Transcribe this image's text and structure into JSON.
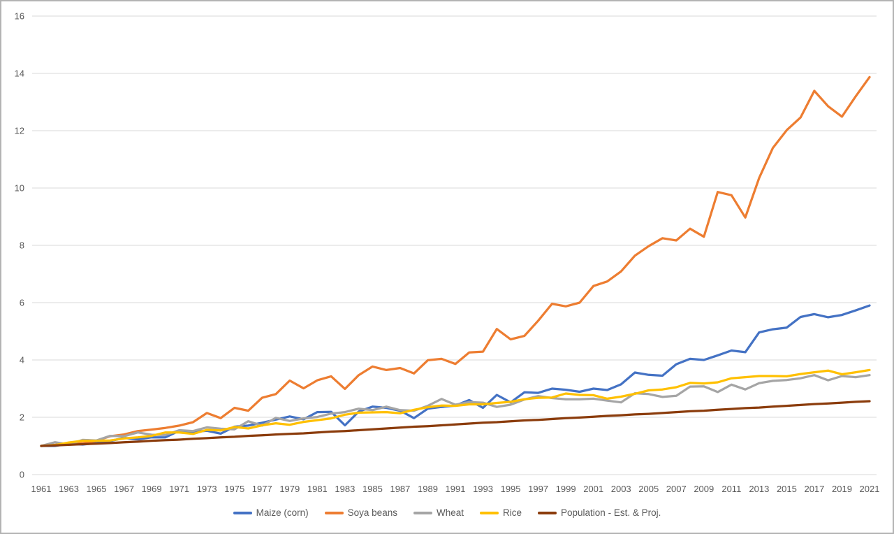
{
  "chart_data": {
    "type": "line",
    "title": "",
    "xlabel": "",
    "ylabel": "",
    "ylim": [
      0,
      16
    ],
    "y_ticks": [
      0,
      2,
      4,
      6,
      8,
      10,
      12,
      14,
      16
    ],
    "x_tick_step_years": 2,
    "grid": true,
    "legend_position": "bottom",
    "gridline_color": "#D9D9D9",
    "axis_label_color": "#595959",
    "x": [
      1961,
      1962,
      1963,
      1964,
      1965,
      1966,
      1967,
      1968,
      1969,
      1970,
      1971,
      1972,
      1973,
      1974,
      1975,
      1976,
      1977,
      1978,
      1979,
      1980,
      1981,
      1982,
      1983,
      1984,
      1985,
      1986,
      1987,
      1988,
      1989,
      1990,
      1991,
      1992,
      1993,
      1994,
      1995,
      1996,
      1997,
      1998,
      1999,
      2000,
      2001,
      2002,
      2003,
      2004,
      2005,
      2006,
      2007,
      2008,
      2009,
      2010,
      2011,
      2012,
      2013,
      2014,
      2015,
      2016,
      2017,
      2018,
      2019,
      2020,
      2021
    ],
    "x_tick_labels": [
      "1961",
      "1963",
      "1965",
      "1967",
      "1969",
      "1971",
      "1973",
      "1975",
      "1977",
      "1979",
      "1981",
      "1983",
      "1985",
      "1987",
      "1989",
      "1991",
      "1993",
      "1995",
      "1997",
      "1999",
      "2001",
      "2003",
      "2005",
      "2007",
      "2009",
      "2011",
      "2013",
      "2015",
      "2017",
      "2019",
      "2021"
    ],
    "series": [
      {
        "name": "Maize (corn)",
        "color": "#4472C4",
        "values": [
          1.0,
          1.0,
          1.08,
          1.05,
          1.1,
          1.17,
          1.28,
          1.23,
          1.3,
          1.3,
          1.53,
          1.49,
          1.53,
          1.43,
          1.67,
          1.71,
          1.81,
          1.92,
          2.03,
          1.93,
          2.18,
          2.19,
          1.72,
          2.2,
          2.37,
          2.33,
          2.23,
          1.97,
          2.3,
          2.36,
          2.41,
          2.6,
          2.33,
          2.78,
          2.52,
          2.87,
          2.85,
          3.0,
          2.96,
          2.89,
          3.0,
          2.95,
          3.15,
          3.56,
          3.48,
          3.45,
          3.85,
          4.04,
          4.0,
          4.16,
          4.33,
          4.27,
          4.96,
          5.07,
          5.13,
          5.5,
          5.6,
          5.49,
          5.57,
          5.73,
          5.9
        ]
      },
      {
        "name": "Soya beans",
        "color": "#ED7D31",
        "values": [
          1.0,
          1.04,
          1.09,
          1.09,
          1.18,
          1.34,
          1.4,
          1.52,
          1.57,
          1.63,
          1.71,
          1.83,
          2.15,
          1.97,
          2.33,
          2.23,
          2.68,
          2.81,
          3.28,
          3.01,
          3.29,
          3.43,
          2.99,
          3.47,
          3.77,
          3.65,
          3.72,
          3.53,
          3.99,
          4.04,
          3.86,
          4.26,
          4.29,
          5.08,
          4.72,
          4.84,
          5.37,
          5.96,
          5.87,
          6.0,
          6.58,
          6.74,
          7.09,
          7.64,
          7.97,
          8.25,
          8.17,
          8.58,
          8.3,
          9.86,
          9.75,
          8.97,
          10.35,
          11.4,
          12.02,
          12.46,
          13.39,
          12.85,
          12.49,
          13.2,
          13.87
        ]
      },
      {
        "name": "Wheat",
        "color": "#A5A5A5",
        "values": [
          1.0,
          1.13,
          1.05,
          1.21,
          1.19,
          1.35,
          1.34,
          1.47,
          1.39,
          1.38,
          1.55,
          1.52,
          1.65,
          1.6,
          1.58,
          1.86,
          1.71,
          1.98,
          1.87,
          1.96,
          2.01,
          2.13,
          2.18,
          2.3,
          2.25,
          2.37,
          2.25,
          2.23,
          2.4,
          2.64,
          2.44,
          2.53,
          2.51,
          2.36,
          2.44,
          2.62,
          2.74,
          2.67,
          2.63,
          2.63,
          2.65,
          2.58,
          2.52,
          2.84,
          2.81,
          2.71,
          2.75,
          3.07,
          3.08,
          2.88,
          3.14,
          2.97,
          3.19,
          3.27,
          3.3,
          3.36,
          3.47,
          3.29,
          3.44,
          3.4,
          3.47
        ]
      },
      {
        "name": "Rice",
        "color": "#FFC000",
        "values": [
          1.0,
          1.03,
          1.12,
          1.18,
          1.18,
          1.19,
          1.26,
          1.3,
          1.35,
          1.47,
          1.47,
          1.42,
          1.56,
          1.54,
          1.66,
          1.61,
          1.72,
          1.79,
          1.74,
          1.84,
          1.9,
          1.96,
          2.09,
          2.16,
          2.17,
          2.18,
          2.14,
          2.26,
          2.35,
          2.41,
          2.4,
          2.45,
          2.45,
          2.5,
          2.54,
          2.63,
          2.68,
          2.69,
          2.83,
          2.78,
          2.77,
          2.65,
          2.72,
          2.82,
          2.94,
          2.97,
          3.05,
          3.2,
          3.18,
          3.22,
          3.36,
          3.4,
          3.44,
          3.44,
          3.43,
          3.51,
          3.57,
          3.63,
          3.5,
          3.57,
          3.65
        ]
      },
      {
        "name": "Population - Est. & Proj.",
        "color": "#8B3C0C",
        "values": [
          1.0,
          1.02,
          1.04,
          1.06,
          1.08,
          1.1,
          1.13,
          1.15,
          1.18,
          1.2,
          1.22,
          1.25,
          1.27,
          1.3,
          1.32,
          1.35,
          1.37,
          1.4,
          1.42,
          1.44,
          1.47,
          1.5,
          1.52,
          1.55,
          1.58,
          1.61,
          1.64,
          1.67,
          1.69,
          1.72,
          1.75,
          1.78,
          1.81,
          1.83,
          1.86,
          1.89,
          1.91,
          1.94,
          1.97,
          1.99,
          2.02,
          2.05,
          2.07,
          2.1,
          2.12,
          2.15,
          2.18,
          2.21,
          2.23,
          2.26,
          2.29,
          2.32,
          2.34,
          2.37,
          2.4,
          2.43,
          2.46,
          2.48,
          2.51,
          2.54,
          2.56
        ]
      }
    ]
  }
}
